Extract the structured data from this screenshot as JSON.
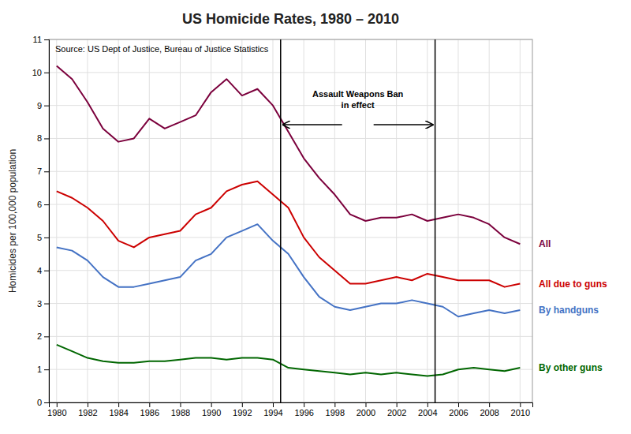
{
  "chart_data": {
    "type": "line",
    "title": "US Homicide Rates, 1980 – 2010",
    "ylabel": "Homicides per 100,000 population",
    "source": "Source:  US Dept of Justice, Bureau of Justice Statistics",
    "annotation": "Assault Weapons Ban\nin effect",
    "vlines": [
      1994.5,
      2004.5
    ],
    "xlim": [
      1979.5,
      2010.8
    ],
    "ylim": [
      0,
      11
    ],
    "xticks": [
      1980,
      1982,
      1984,
      1986,
      1988,
      1990,
      1992,
      1994,
      1996,
      1998,
      2000,
      2002,
      2004,
      2006,
      2008,
      2010
    ],
    "yticks": [
      0,
      1,
      2,
      3,
      4,
      5,
      6,
      7,
      8,
      9,
      10,
      11
    ],
    "grid": true,
    "x": [
      1980,
      1981,
      1982,
      1983,
      1984,
      1985,
      1986,
      1987,
      1988,
      1989,
      1990,
      1991,
      1992,
      1993,
      1994,
      1995,
      1996,
      1997,
      1998,
      1999,
      2000,
      2001,
      2002,
      2003,
      2004,
      2005,
      2006,
      2007,
      2008,
      2009,
      2010
    ],
    "series": [
      {
        "name": "All",
        "color": "#7B003C",
        "values": [
          10.2,
          9.8,
          9.1,
          8.3,
          7.9,
          8.0,
          8.6,
          8.3,
          8.5,
          8.7,
          9.4,
          9.8,
          9.3,
          9.5,
          9.0,
          8.2,
          7.4,
          6.8,
          6.3,
          5.7,
          5.5,
          5.6,
          5.6,
          5.7,
          5.5,
          5.6,
          5.7,
          5.6,
          5.4,
          5.0,
          4.8
        ]
      },
      {
        "name": "All due to guns",
        "color": "#CC0000",
        "values": [
          6.4,
          6.2,
          5.9,
          5.5,
          4.9,
          4.7,
          5.0,
          5.1,
          5.2,
          5.7,
          5.9,
          6.4,
          6.6,
          6.7,
          6.3,
          5.9,
          5.0,
          4.4,
          4.0,
          3.6,
          3.6,
          3.7,
          3.8,
          3.7,
          3.9,
          3.8,
          3.7,
          3.7,
          3.7,
          3.5,
          3.6
        ]
      },
      {
        "name": "By handguns",
        "color": "#4472C4",
        "values": [
          4.7,
          4.6,
          4.3,
          3.8,
          3.5,
          3.5,
          3.6,
          3.7,
          3.8,
          4.3,
          4.5,
          5.0,
          5.2,
          5.4,
          4.9,
          4.5,
          3.8,
          3.2,
          2.9,
          2.8,
          2.9,
          3.0,
          3.0,
          3.1,
          3.0,
          2.9,
          2.6,
          2.7,
          2.8,
          2.7,
          2.8
        ]
      },
      {
        "name": "By other guns",
        "color": "#006600",
        "values": [
          1.75,
          1.55,
          1.35,
          1.25,
          1.2,
          1.2,
          1.25,
          1.25,
          1.3,
          1.35,
          1.35,
          1.3,
          1.35,
          1.35,
          1.3,
          1.05,
          1.0,
          0.95,
          0.9,
          0.85,
          0.9,
          0.85,
          0.9,
          0.85,
          0.8,
          0.85,
          1.0,
          1.05,
          1.0,
          0.95,
          1.05
        ]
      }
    ]
  }
}
